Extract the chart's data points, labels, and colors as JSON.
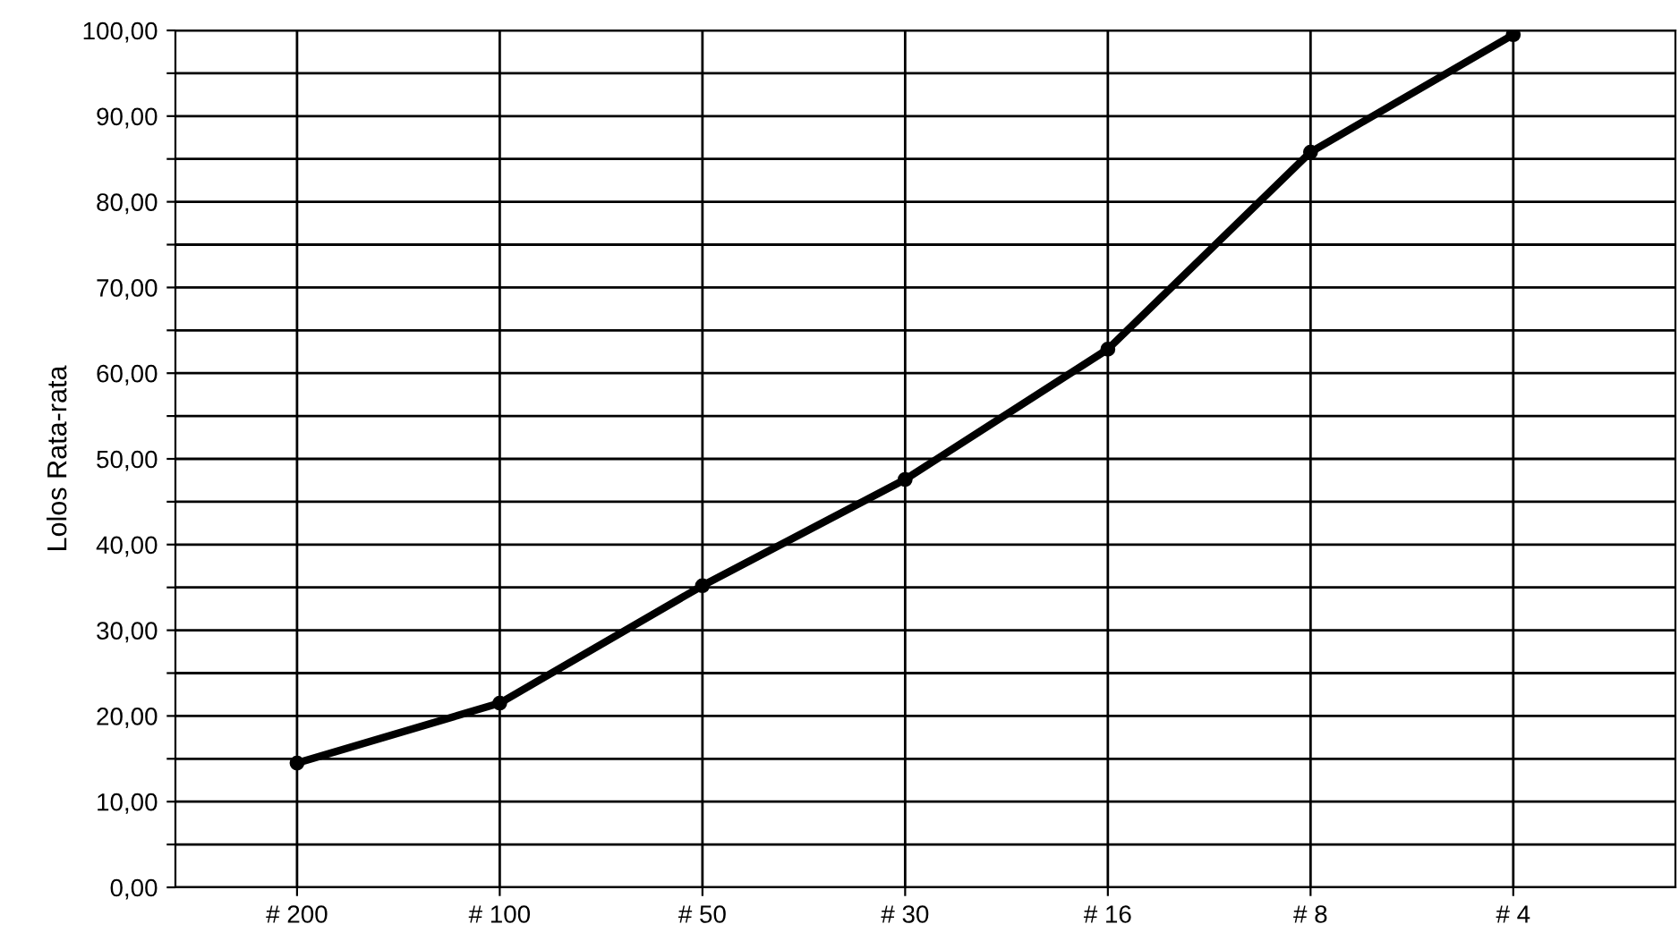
{
  "chart_data": {
    "type": "line",
    "ylabel": "Lolos Rata-rata",
    "categories": [
      "# 200",
      "# 100",
      "# 50",
      "# 30",
      "# 16",
      "# 8",
      "# 4"
    ],
    "series": [
      {
        "color": "#000000",
        "values": [
          14.5,
          21.5,
          35.2,
          47.6,
          62.8,
          85.8,
          99.5
        ]
      }
    ],
    "marker": "circle",
    "line_style": "solid",
    "grid": true,
    "ylim": [
      0,
      100
    ],
    "yticks": [
      {
        "value": 0,
        "label": "0,00"
      },
      {
        "value": 5,
        "label": null
      },
      {
        "value": 10,
        "label": "10,00"
      },
      {
        "value": 15,
        "label": null
      },
      {
        "value": 20,
        "label": "20,00"
      },
      {
        "value": 25,
        "label": null
      },
      {
        "value": 30,
        "label": "30,00"
      },
      {
        "value": 35,
        "label": null
      },
      {
        "value": 40,
        "label": "40,00"
      },
      {
        "value": 45,
        "label": null
      },
      {
        "value": 50,
        "label": "50,00"
      },
      {
        "value": 55,
        "label": null
      },
      {
        "value": 60,
        "label": "60,00"
      },
      {
        "value": 65,
        "label": null
      },
      {
        "value": 70,
        "label": "70,00"
      },
      {
        "value": 75,
        "label": null
      },
      {
        "value": 80,
        "label": "80,00"
      },
      {
        "value": 85,
        "label": null
      },
      {
        "value": 90,
        "label": "90,00"
      },
      {
        "value": 95,
        "label": null
      },
      {
        "value": 100,
        "label": "100,00"
      }
    ]
  }
}
